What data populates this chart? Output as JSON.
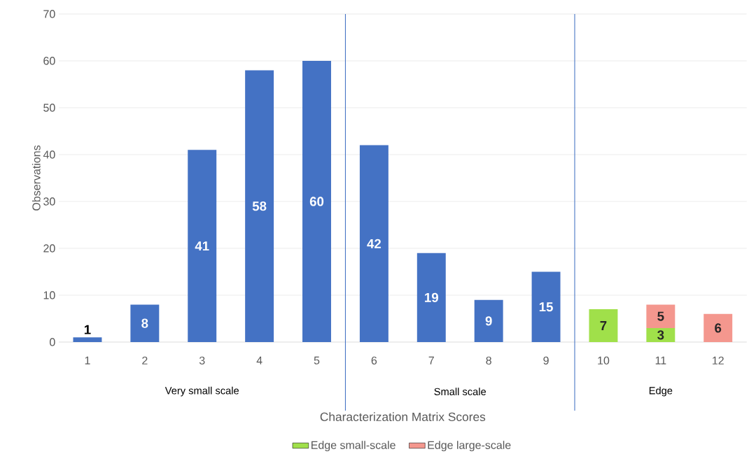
{
  "chart_data": {
    "type": "bar",
    "stacked": true,
    "xlabel": "Characterization Matrix Scores",
    "ylabel": "Observations",
    "x": [
      1,
      2,
      3,
      4,
      5,
      6,
      7,
      8,
      9,
      10,
      11,
      12
    ],
    "xlim": [
      0.5,
      12.5
    ],
    "xticks": [
      1,
      2,
      3,
      4,
      5,
      6,
      7,
      8,
      9,
      10,
      11,
      12
    ],
    "ylim": [
      0,
      70
    ],
    "yticks": [
      0,
      10,
      20,
      30,
      40,
      50,
      60,
      70
    ],
    "series": [
      {
        "color": "#4472c4",
        "values": [
          1,
          8,
          41,
          58,
          60,
          42,
          19,
          9,
          15,
          null,
          null,
          null
        ]
      },
      {
        "name": "Edge small-scale",
        "color": "#a0e04a",
        "values": [
          null,
          null,
          null,
          null,
          null,
          null,
          null,
          null,
          null,
          7,
          3,
          null
        ]
      },
      {
        "name": "Edge large-scale",
        "color": "#f4978e",
        "values": [
          null,
          null,
          null,
          null,
          null,
          null,
          null,
          null,
          null,
          null,
          5,
          6
        ]
      }
    ],
    "ref_lines": [
      {
        "axis": "x",
        "value": 5.5,
        "color": "#4472c4"
      },
      {
        "axis": "x",
        "value": 9.5,
        "color": "#4472c4"
      }
    ],
    "annotations": [
      "Very small scale",
      "Small scale",
      "Edge"
    ],
    "data_labels": true,
    "grid": "y",
    "legend": "bottom"
  }
}
